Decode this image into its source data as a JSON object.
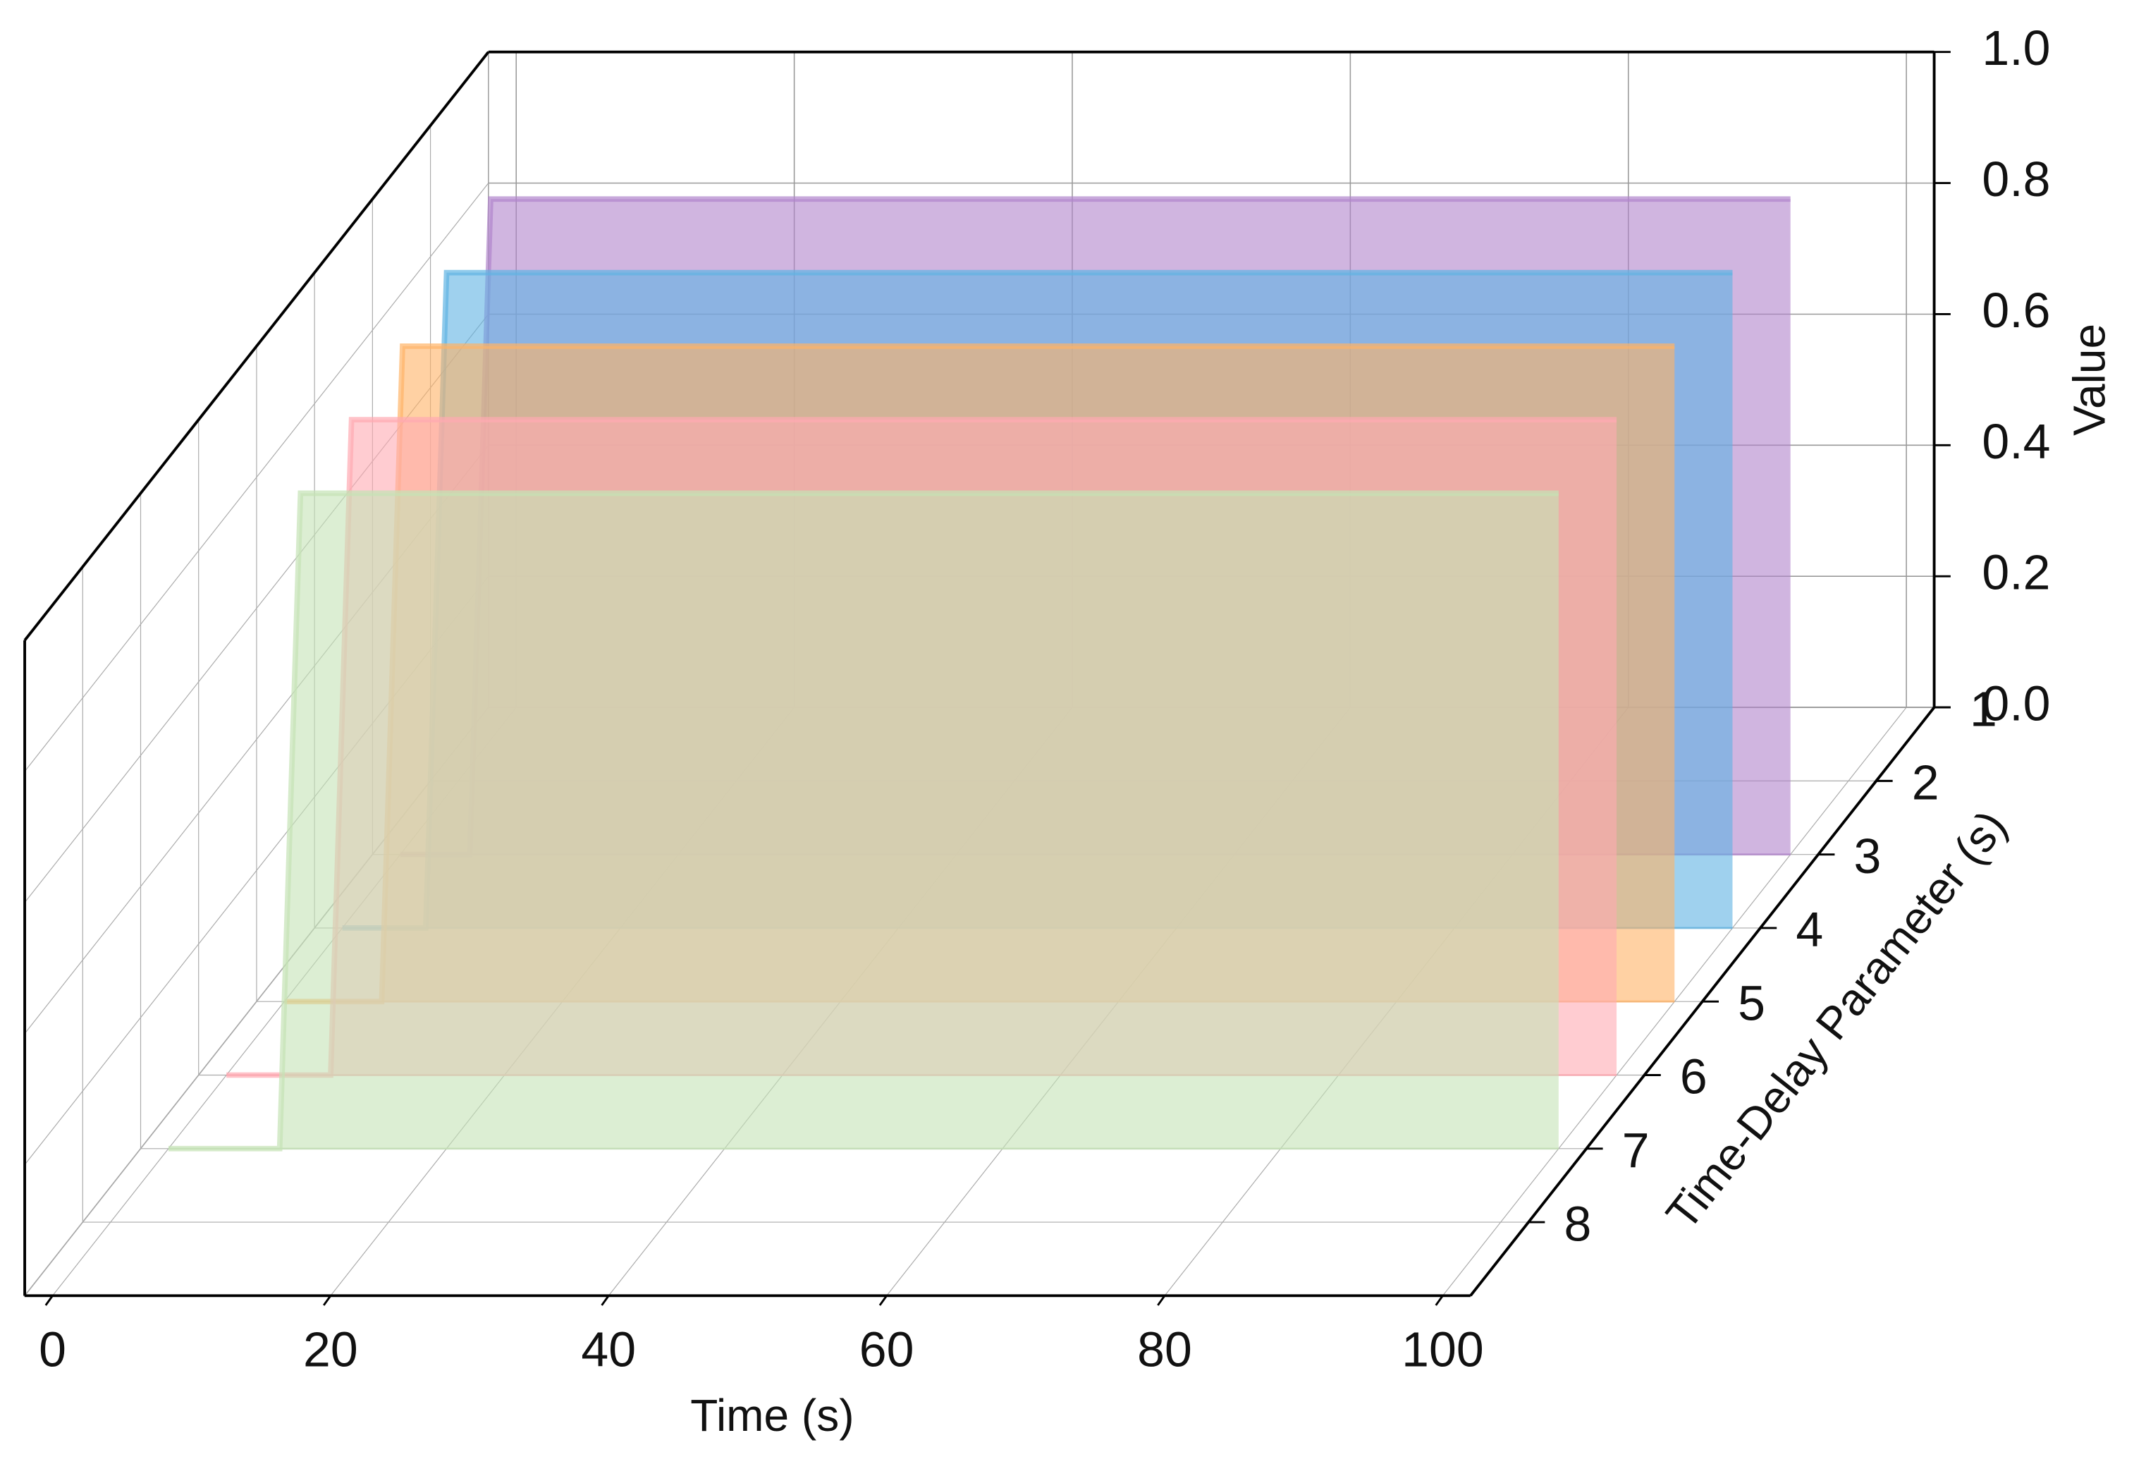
{
  "chart_data": {
    "type": "area3d",
    "xlabel": "Time (s)",
    "ylabel": "Time-Delay Parameter (s)",
    "zlabel": "Value",
    "xlim": [
      -2,
      102
    ],
    "xticks": [
      0,
      20,
      40,
      60,
      80,
      100
    ],
    "ylim": [
      1,
      9
    ],
    "yticks": [
      1,
      2,
      3,
      4,
      5,
      6,
      7,
      8
    ],
    "zlim": [
      0,
      1
    ],
    "zticks": [
      {
        "value": 0,
        "label": "0.0"
      },
      0.2,
      0.4,
      0.6,
      0.8,
      {
        "value": 1,
        "label": "1.0"
      }
    ],
    "grid": true,
    "series": [
      {
        "color": "#b084cc",
        "y": 3,
        "x": [
          0,
          5,
          6.5,
          100
        ],
        "values": [
          0,
          0,
          1,
          1
        ]
      },
      {
        "color": "#5fb3e3",
        "y": 4,
        "x": [
          0,
          6,
          7.5,
          100
        ],
        "values": [
          0,
          0,
          1,
          1
        ]
      },
      {
        "color": "#ffb366",
        "y": 5,
        "x": [
          0,
          7,
          8.5,
          100
        ],
        "values": [
          0,
          0,
          1,
          1
        ]
      },
      {
        "color": "#ffaab2",
        "y": 6,
        "x": [
          0,
          7.5,
          9,
          100
        ],
        "values": [
          0,
          0,
          1,
          1
        ]
      },
      {
        "color": "#c5e3b5",
        "y": 7,
        "x": [
          0,
          8,
          9.5,
          100
        ],
        "values": [
          0,
          0,
          1,
          1
        ]
      }
    ]
  }
}
